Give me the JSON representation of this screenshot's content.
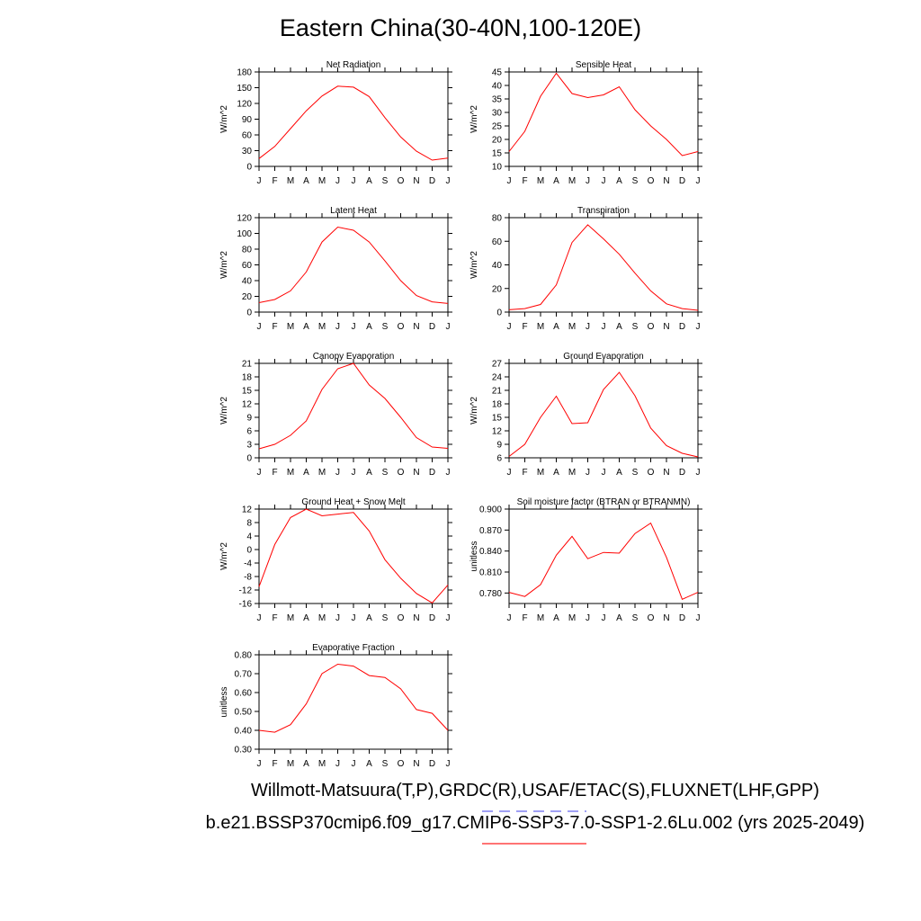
{
  "title": "Eastern China(30-40N,100-120E)",
  "legend": {
    "line1": "Willmott-Matsuura(T,P),GRDC(R),USAF/ETAC(S),FLUXNET(LHF,GPP)",
    "line2": "b.e21.BSSP370cmip6.f09_g17.CMIP6-SSP3-7.0-SSP1-2.6Lu.002 (yrs 2025-2049)",
    "line1_color": "#6666ee",
    "line2_color": "#ff2222"
  },
  "colors": {
    "series": "#ff0000",
    "axis": "#000000"
  },
  "chart_data": [
    {
      "type": "line",
      "title": "Net Radiation",
      "ylabel": "W/m^2",
      "x": [
        "J",
        "F",
        "M",
        "A",
        "M",
        "J",
        "J",
        "A",
        "S",
        "O",
        "N",
        "D",
        "J"
      ],
      "ylim": [
        0,
        180
      ],
      "yticks": [
        "0",
        "30",
        "60",
        "90",
        "120",
        "150",
        "180"
      ],
      "series": [
        {
          "values": [
            15,
            38,
            72,
            106,
            134,
            153,
            151,
            133,
            93,
            56,
            29,
            12,
            16
          ]
        }
      ]
    },
    {
      "type": "line",
      "title": "Sensible Heat",
      "ylabel": "W/m^2",
      "x": [
        "J",
        "F",
        "M",
        "A",
        "M",
        "J",
        "J",
        "A",
        "S",
        "O",
        "N",
        "D",
        "J"
      ],
      "ylim": [
        10,
        45
      ],
      "yticks": [
        "10",
        "15",
        "20",
        "25",
        "30",
        "35",
        "40",
        "45"
      ],
      "series": [
        {
          "values": [
            15.5,
            23,
            36,
            44.5,
            37,
            35.5,
            36.5,
            39.5,
            31,
            25,
            20,
            14,
            15.5
          ]
        }
      ]
    },
    {
      "type": "line",
      "title": "Latent Heat",
      "ylabel": "W/m^2",
      "x": [
        "J",
        "F",
        "M",
        "A",
        "M",
        "J",
        "J",
        "A",
        "S",
        "O",
        "N",
        "D",
        "J"
      ],
      "ylim": [
        0,
        120
      ],
      "yticks": [
        "0",
        "20",
        "40",
        "60",
        "80",
        "100",
        "120"
      ],
      "series": [
        {
          "values": [
            12,
            16,
            27,
            51,
            89,
            108,
            104,
            89,
            65,
            40,
            21,
            13,
            11
          ]
        }
      ]
    },
    {
      "type": "line",
      "title": "Transpiration",
      "ylabel": "W/m^2",
      "x": [
        "J",
        "F",
        "M",
        "A",
        "M",
        "J",
        "J",
        "A",
        "S",
        "O",
        "N",
        "D",
        "J"
      ],
      "ylim": [
        0,
        80
      ],
      "yticks": [
        "0",
        "20",
        "40",
        "60",
        "80"
      ],
      "series": [
        {
          "values": [
            2,
            3,
            6.5,
            23,
            59,
            74,
            62,
            49,
            33,
            18,
            7,
            3,
            1.5
          ]
        }
      ]
    },
    {
      "type": "line",
      "title": "Canopy Evaporation",
      "ylabel": "W/m^2",
      "x": [
        "J",
        "F",
        "M",
        "A",
        "M",
        "J",
        "J",
        "A",
        "S",
        "O",
        "N",
        "D",
        "J"
      ],
      "ylim": [
        0,
        21
      ],
      "yticks": [
        "0",
        "3",
        "6",
        "9",
        "12",
        "15",
        "18",
        "21"
      ],
      "series": [
        {
          "values": [
            2,
            3,
            5,
            8.2,
            15.2,
            19.8,
            21,
            16.2,
            13.2,
            9,
            4.5,
            2.4,
            2.1
          ]
        }
      ]
    },
    {
      "type": "line",
      "title": "Ground Evaporation",
      "ylabel": "W/m^2",
      "x": [
        "J",
        "F",
        "M",
        "A",
        "M",
        "J",
        "J",
        "A",
        "S",
        "O",
        "N",
        "D",
        "J"
      ],
      "ylim": [
        6,
        27
      ],
      "yticks": [
        "6",
        "9",
        "12",
        "15",
        "18",
        "21",
        "24",
        "27"
      ],
      "series": [
        {
          "values": [
            6.3,
            9,
            15,
            19.7,
            13.6,
            13.8,
            21.2,
            25,
            19.8,
            12.6,
            8.7,
            7,
            6.2
          ]
        }
      ]
    },
    {
      "type": "line",
      "title": "Ground Heat + Snow Melt",
      "ylabel": "W/m^2",
      "x": [
        "J",
        "F",
        "M",
        "A",
        "M",
        "J",
        "J",
        "A",
        "S",
        "O",
        "N",
        "D",
        "J"
      ],
      "ylim": [
        -16,
        12
      ],
      "yticks": [
        "-16",
        "-12",
        "-8",
        "-4",
        "0",
        "4",
        "8",
        "12"
      ],
      "series": [
        {
          "values": [
            -11,
            1.5,
            9.5,
            12,
            10,
            10.5,
            11,
            5.5,
            -3,
            -8.5,
            -13,
            -15.8,
            -10.5
          ]
        }
      ]
    },
    {
      "type": "line",
      "title": "Soil moisture factor (BTRAN or BTRANMN)",
      "ylabel": "unitless",
      "x": [
        "J",
        "F",
        "M",
        "A",
        "M",
        "J",
        "J",
        "A",
        "S",
        "O",
        "N",
        "D",
        "J"
      ],
      "ylim": [
        0.765,
        0.9
      ],
      "yticks": [
        "0.780",
        "0.810",
        "0.840",
        "0.870",
        "0.900"
      ],
      "series": [
        {
          "values": [
            0.781,
            0.775,
            0.792,
            0.834,
            0.861,
            0.829,
            0.838,
            0.837,
            0.865,
            0.88,
            0.831,
            0.771,
            0.781
          ]
        }
      ]
    },
    {
      "type": "line",
      "title": "Evaporative Fraction",
      "ylabel": "unitless",
      "x": [
        "J",
        "F",
        "M",
        "A",
        "M",
        "J",
        "J",
        "A",
        "S",
        "O",
        "N",
        "D",
        "J"
      ],
      "ylim": [
        0.3,
        0.8
      ],
      "yticks": [
        "0.30",
        "0.40",
        "0.50",
        "0.60",
        "0.70",
        "0.80"
      ],
      "series": [
        {
          "values": [
            0.4,
            0.39,
            0.43,
            0.54,
            0.7,
            0.75,
            0.74,
            0.69,
            0.68,
            0.62,
            0.51,
            0.49,
            0.4
          ]
        }
      ]
    }
  ]
}
